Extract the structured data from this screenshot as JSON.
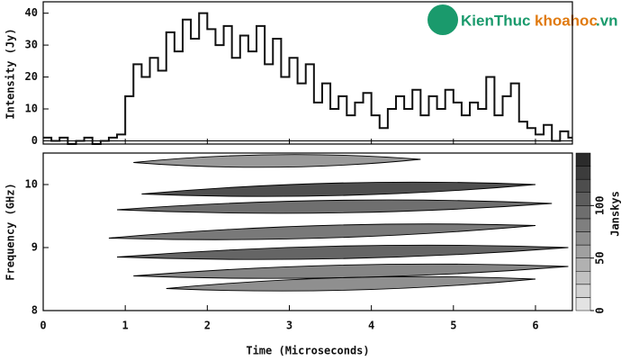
{
  "chart_data": [
    {
      "type": "step",
      "y_label": "Intensity (Jy)",
      "x": [
        0.0,
        0.1,
        0.2,
        0.3,
        0.4,
        0.5,
        0.6,
        0.7,
        0.8,
        0.9,
        1.0,
        1.1,
        1.2,
        1.3,
        1.4,
        1.5,
        1.6,
        1.7,
        1.8,
        1.9,
        2.0,
        2.1,
        2.2,
        2.3,
        2.4,
        2.5,
        2.6,
        2.7,
        2.8,
        2.9,
        3.0,
        3.1,
        3.2,
        3.3,
        3.4,
        3.5,
        3.6,
        3.7,
        3.8,
        3.9,
        4.0,
        4.1,
        4.2,
        4.3,
        4.4,
        4.5,
        4.6,
        4.7,
        4.8,
        4.9,
        5.0,
        5.1,
        5.2,
        5.3,
        5.4,
        5.5,
        5.6,
        5.7,
        5.8,
        5.9,
        6.0,
        6.1,
        6.2,
        6.3,
        6.4
      ],
      "values": [
        1,
        0,
        1,
        -1,
        0,
        1,
        -1,
        0,
        1,
        2,
        14,
        24,
        20,
        26,
        22,
        34,
        28,
        38,
        32,
        40,
        35,
        30,
        36,
        26,
        33,
        28,
        36,
        24,
        32,
        20,
        26,
        18,
        24,
        12,
        18,
        10,
        14,
        8,
        12,
        15,
        8,
        4,
        10,
        14,
        10,
        16,
        8,
        14,
        10,
        16,
        12,
        8,
        12,
        10,
        20,
        8,
        14,
        18,
        6,
        4,
        2,
        5,
        0,
        3,
        1
      ],
      "color": "#111111",
      "xlim": [
        0,
        6.45
      ],
      "ylim": [
        -1,
        43
      ],
      "yticks": [
        0,
        10,
        20,
        30,
        40
      ]
    },
    {
      "type": "contour",
      "x_label": "Time (Microseconds)",
      "y_label": "Frequency (GHz)",
      "colorbar_label": "Janskys",
      "bands": {
        "x0": [
          1.1,
          1.2,
          0.9,
          0.8,
          0.9,
          1.1,
          1.5
        ],
        "x1": [
          4.6,
          6.0,
          6.2,
          6.0,
          6.4,
          6.4,
          6.0
        ],
        "y0": [
          10.35,
          9.85,
          9.6,
          9.15,
          8.85,
          8.55,
          8.35
        ],
        "y1": [
          10.4,
          10.0,
          9.7,
          9.35,
          9.0,
          8.7,
          8.5
        ],
        "z": [
          80,
          150,
          120,
          110,
          130,
          100,
          90
        ]
      },
      "xlim": [
        0,
        6.45
      ],
      "ylim": [
        8,
        10.5
      ],
      "zlim": [
        0,
        150
      ],
      "xticks": [
        0,
        1,
        2,
        3,
        4,
        5,
        6
      ],
      "yticks": [
        8,
        9,
        10
      ],
      "zticks": [
        0,
        50,
        100
      ]
    }
  ],
  "watermark": {
    "brand": "KienThuc",
    "site": "khoahoc",
    "domain": ".vn"
  }
}
